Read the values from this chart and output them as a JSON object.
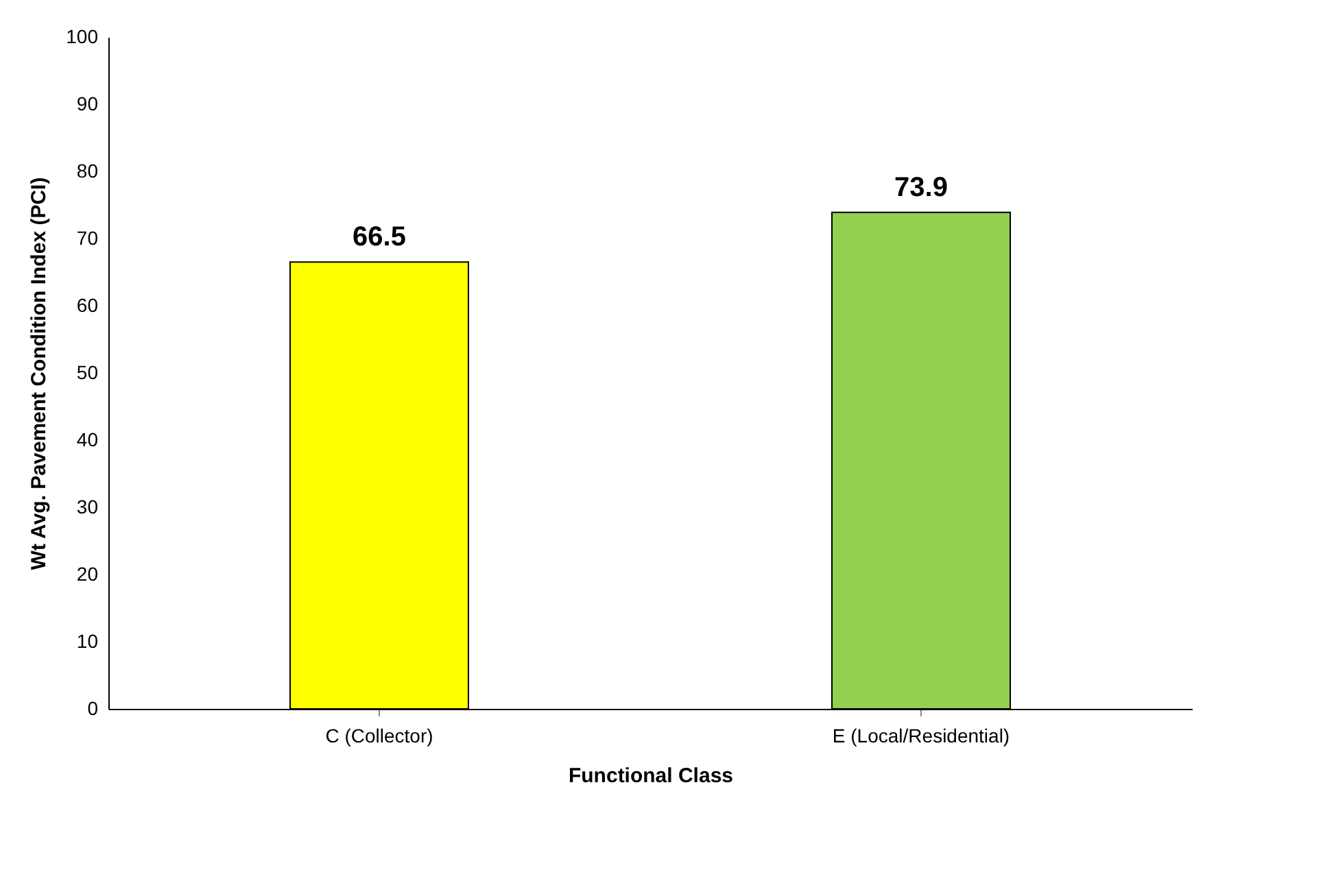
{
  "chart_data": {
    "type": "bar",
    "xlabel": "Functional Class",
    "ylabel": "Wt Avg. Pavement Condition Index (PCI)",
    "categories": [
      "C (Collector)",
      "E (Local/Residential)"
    ],
    "values": [
      66.5,
      73.9
    ],
    "colors": [
      "#ffff00",
      "#92d050"
    ],
    "ylim": [
      0,
      100
    ],
    "yticks": [
      0,
      10,
      20,
      30,
      40,
      50,
      60,
      70,
      80,
      90,
      100
    ],
    "grid": false,
    "data_labels": true
  }
}
